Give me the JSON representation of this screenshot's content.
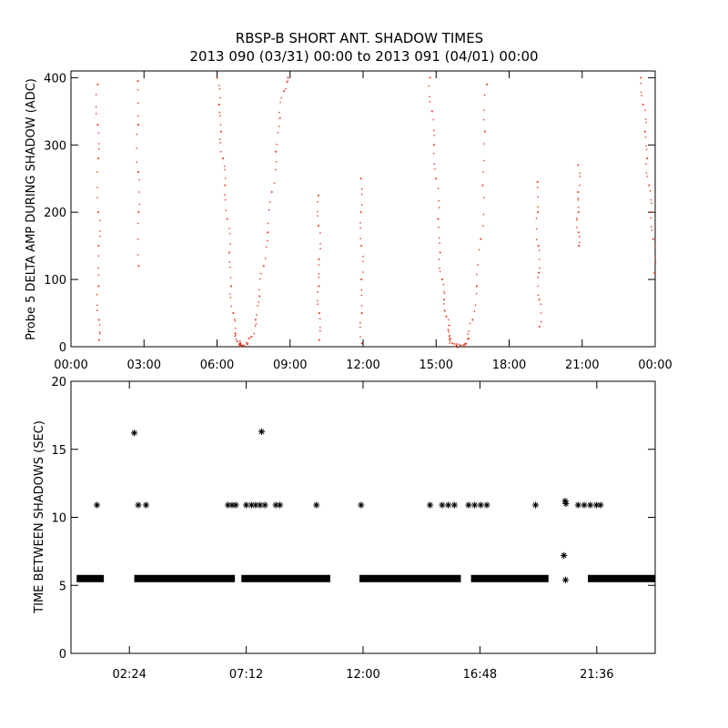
{
  "title": "RBSP-B SHORT ANT. SHADOW TIMES",
  "subtitle": "2013 090 (03/31) 00:00 to 2013 091 (04/01) 00:00",
  "colors": {
    "top_points": "#e8381c",
    "bottom_points": "#000000",
    "axes": "#000000"
  },
  "chart_data": [
    {
      "type": "scatter",
      "ylabel": "Probe 5 DELTA AMP DURING SHADOW (ADC)",
      "xlabel": "",
      "xlim": [
        "00:00",
        "24:00"
      ],
      "ylim": [
        0,
        410
      ],
      "xticklabels": [
        "00:00",
        "03:00",
        "06:00",
        "09:00",
        "12:00",
        "15:00",
        "18:00",
        "21:00",
        "00:00"
      ],
      "yticklabels": [
        "0",
        "100",
        "200",
        "300",
        "400"
      ],
      "marker": "dot",
      "color": "#e8381c",
      "series": [
        {
          "x": [
            "01:06",
            "01:06",
            "01:07",
            "01:07",
            "01:08",
            "01:08",
            "01:09",
            "01:09"
          ],
          "y": [
            390,
            330,
            280,
            200,
            150,
            90,
            40,
            10
          ]
        },
        {
          "x": [
            "02:45",
            "02:46",
            "02:46",
            "02:47",
            "02:47"
          ],
          "y": [
            395,
            330,
            260,
            200,
            120
          ]
        },
        {
          "x": [
            "06:00",
            "06:05",
            "06:10",
            "06:15",
            "06:20",
            "06:25",
            "06:30",
            "06:35",
            "06:40",
            "06:45",
            "06:50",
            "06:55",
            "07:00",
            "07:05",
            "07:15",
            "07:25",
            "07:35",
            "07:45",
            "07:55",
            "08:05",
            "08:15",
            "08:25",
            "08:35",
            "08:45",
            "08:55"
          ],
          "y": [
            400,
            360,
            320,
            280,
            240,
            190,
            140,
            90,
            50,
            20,
            8,
            3,
            2,
            2,
            4,
            15,
            40,
            75,
            120,
            170,
            230,
            290,
            340,
            380,
            400
          ]
        },
        {
          "x": [
            "10:10",
            "10:10",
            "10:11",
            "10:11",
            "10:12",
            "10:12"
          ],
          "y": [
            225,
            180,
            130,
            90,
            50,
            10
          ]
        },
        {
          "x": [
            "11:55",
            "11:55",
            "11:56",
            "11:56",
            "11:57",
            "11:57"
          ],
          "y": [
            250,
            200,
            150,
            100,
            50,
            5
          ]
        },
        {
          "x": [
            "14:45",
            "14:50",
            "14:55",
            "15:00",
            "15:05",
            "15:10",
            "15:15",
            "15:20",
            "15:25",
            "15:30",
            "15:35",
            "15:40",
            "15:50",
            "16:00",
            "16:10",
            "16:20",
            "16:30",
            "16:40",
            "16:50",
            "16:55",
            "17:00",
            "17:05"
          ],
          "y": [
            400,
            350,
            300,
            250,
            190,
            140,
            100,
            70,
            45,
            25,
            12,
            5,
            2,
            2,
            3,
            12,
            40,
            90,
            160,
            240,
            320,
            390
          ]
        },
        {
          "x": [
            "19:10",
            "19:11",
            "19:12",
            "19:13",
            "19:14",
            "19:15"
          ],
          "y": [
            245,
            200,
            150,
            110,
            70,
            30
          ]
        },
        {
          "x": [
            "20:50",
            "20:50",
            "20:51",
            "20:51",
            "20:52"
          ],
          "y": [
            270,
            230,
            200,
            170,
            150
          ]
        },
        {
          "x": [
            "23:25",
            "23:30",
            "23:35",
            "23:40",
            "23:45",
            "23:50",
            "23:55",
            "23:58"
          ],
          "y": [
            400,
            360,
            320,
            280,
            240,
            200,
            160,
            110
          ]
        }
      ]
    },
    {
      "type": "scatter",
      "ylabel": "TIME BETWEEN SHADOWS (SEC)",
      "xlabel": "",
      "xlim": [
        "00:00",
        "24:00"
      ],
      "ylim": [
        0,
        20
      ],
      "xticklabels": [
        "02:24",
        "07:12",
        "12:00",
        "16:48",
        "21:36"
      ],
      "yticklabels": [
        "0",
        "5",
        "10",
        "15",
        "20"
      ],
      "marker": "asterisk",
      "color": "#000000",
      "bands_at_y": 5.5,
      "band_segments": [
        [
          "00:14",
          "01:21"
        ],
        [
          "02:36",
          "06:44"
        ],
        [
          "07:00",
          "10:39"
        ],
        [
          "11:51",
          "16:01"
        ],
        [
          "16:26",
          "19:37"
        ],
        [
          "21:14",
          "24:00"
        ]
      ],
      "points": [
        {
          "x": "01:04",
          "y": 10.9
        },
        {
          "x": "02:36",
          "y": 16.2
        },
        {
          "x": "02:46",
          "y": 10.9
        },
        {
          "x": "03:05",
          "y": 10.9
        },
        {
          "x": "06:27",
          "y": 10.9
        },
        {
          "x": "06:37",
          "y": 10.9
        },
        {
          "x": "06:46",
          "y": 10.9
        },
        {
          "x": "07:12",
          "y": 10.9
        },
        {
          "x": "07:25",
          "y": 10.9
        },
        {
          "x": "07:35",
          "y": 10.9
        },
        {
          "x": "07:46",
          "y": 10.9
        },
        {
          "x": "07:50",
          "y": 16.3
        },
        {
          "x": "07:58",
          "y": 10.9
        },
        {
          "x": "08:25",
          "y": 10.9
        },
        {
          "x": "08:35",
          "y": 10.9
        },
        {
          "x": "10:05",
          "y": 10.9
        },
        {
          "x": "11:55",
          "y": 10.9
        },
        {
          "x": "14:45",
          "y": 10.9
        },
        {
          "x": "15:15",
          "y": 10.9
        },
        {
          "x": "15:30",
          "y": 10.9
        },
        {
          "x": "15:45",
          "y": 10.9
        },
        {
          "x": "16:20",
          "y": 10.9
        },
        {
          "x": "16:35",
          "y": 10.9
        },
        {
          "x": "16:50",
          "y": 10.9
        },
        {
          "x": "17:05",
          "y": 10.9
        },
        {
          "x": "19:05",
          "y": 10.9
        },
        {
          "x": "20:18",
          "y": 11.2
        },
        {
          "x": "20:20",
          "y": 11.0
        },
        {
          "x": "20:15",
          "y": 7.2
        },
        {
          "x": "20:19",
          "y": 5.4
        },
        {
          "x": "20:50",
          "y": 10.9
        },
        {
          "x": "21:05",
          "y": 10.9
        },
        {
          "x": "21:20",
          "y": 10.9
        },
        {
          "x": "21:35",
          "y": 10.9
        },
        {
          "x": "21:45",
          "y": 10.9
        }
      ]
    }
  ]
}
